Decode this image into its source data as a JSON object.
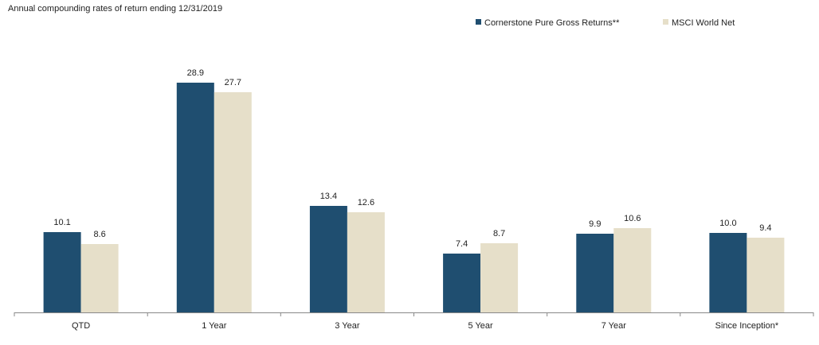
{
  "chart_data": {
    "type": "bar",
    "title": "Annual compounding rates of return ending 12/31/2019",
    "xlabel": "",
    "ylabel": "",
    "ylim": [
      0,
      32
    ],
    "grid": false,
    "legend_position": "top-right",
    "categories": [
      "QTD",
      "1 Year",
      "3 Year",
      "5 Year",
      "7 Year",
      "Since Inception*"
    ],
    "series": [
      {
        "name": "Cornerstone Pure Gross Returns**",
        "color": "#1f4e70",
        "values": [
          10.1,
          28.9,
          13.4,
          7.4,
          9.9,
          10.0
        ]
      },
      {
        "name": "MSCI World Net",
        "color": "#e6dfc9",
        "values": [
          8.6,
          27.7,
          12.6,
          8.7,
          10.6,
          9.4
        ]
      }
    ],
    "axis_color": "#888888"
  }
}
